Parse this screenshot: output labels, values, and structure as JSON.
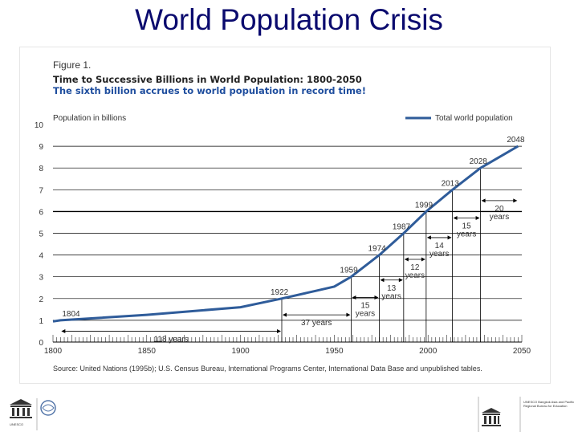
{
  "slide": {
    "title": "World Population Crisis"
  },
  "figure": {
    "label": "Figure 1.",
    "heading": "Time to Successive Billions in World Population:  1800-2050",
    "subheading": "The sixth billion accrues to world population in record time!",
    "source": "Source: United Nations (1995b); U.S. Census Bureau, International Programs Center, International Data Base and unpublished tables."
  },
  "chart_data": {
    "type": "line",
    "title": "Time to Successive Billions in World Population: 1800-2050",
    "ylabel": "Population in billions",
    "xlabel": "",
    "xlim": [
      1800,
      2050
    ],
    "ylim": [
      0,
      10
    ],
    "x_ticks": [
      1800,
      1850,
      1900,
      1950,
      2000,
      2050
    ],
    "y_ticks": [
      0,
      1,
      2,
      3,
      4,
      5,
      6,
      7,
      8,
      9,
      10
    ],
    "legend": {
      "label": "Total world population",
      "position": "top-right"
    },
    "series": [
      {
        "name": "Total world population",
        "x": [
          1800,
          1804,
          1850,
          1900,
          1922,
          1940,
          1950,
          1959,
          1974,
          1987,
          1999,
          2013,
          2028,
          2048
        ],
        "y": [
          0.95,
          1.0,
          1.25,
          1.6,
          2.0,
          2.35,
          2.55,
          3.0,
          4.0,
          5.0,
          6.0,
          7.0,
          8.0,
          9.0
        ]
      }
    ],
    "milestones": [
      {
        "year": 1804,
        "billion": 1,
        "label": "1804"
      },
      {
        "year": 1922,
        "billion": 2,
        "label": "1922"
      },
      {
        "year": 1959,
        "billion": 3,
        "label": "1959"
      },
      {
        "year": 1974,
        "billion": 4,
        "label": "1974"
      },
      {
        "year": 1987,
        "billion": 5,
        "label": "1987"
      },
      {
        "year": 1999,
        "billion": 6,
        "label": "1999"
      },
      {
        "year": 2013,
        "billion": 7,
        "label": "2013"
      },
      {
        "year": 2028,
        "billion": 8,
        "label": "2028"
      },
      {
        "year": 2048,
        "billion": 9,
        "label": "2048"
      }
    ],
    "intervals": [
      {
        "from": 1804,
        "to": 1922,
        "label": "118 years",
        "at_billion": 0.5
      },
      {
        "from": 1922,
        "to": 1959,
        "label": "37 years",
        "at_billion": 1.25
      },
      {
        "from": 1959,
        "to": 1974,
        "label": "15 years",
        "at_billion": 2.05
      },
      {
        "from": 1974,
        "to": 1987,
        "label": "13 years",
        "at_billion": 2.85
      },
      {
        "from": 1987,
        "to": 1999,
        "label": "12 years",
        "at_billion": 3.8
      },
      {
        "from": 1999,
        "to": 2013,
        "label": "14 years",
        "at_billion": 4.8
      },
      {
        "from": 2013,
        "to": 2028,
        "label": "15 years",
        "at_billion": 5.7
      },
      {
        "from": 2028,
        "to": 2048,
        "label": "20 years",
        "at_billion": 6.5
      }
    ]
  },
  "logos": {
    "left_caption": "UNESCO",
    "right_caption": "UNESCO Bangkok Asia and Pacific Regional Bureau for Education"
  },
  "colors": {
    "title": "#0a0a6e",
    "line": "#2f5c9a",
    "grid": "#000000",
    "subheading": "#1f4e9e"
  }
}
